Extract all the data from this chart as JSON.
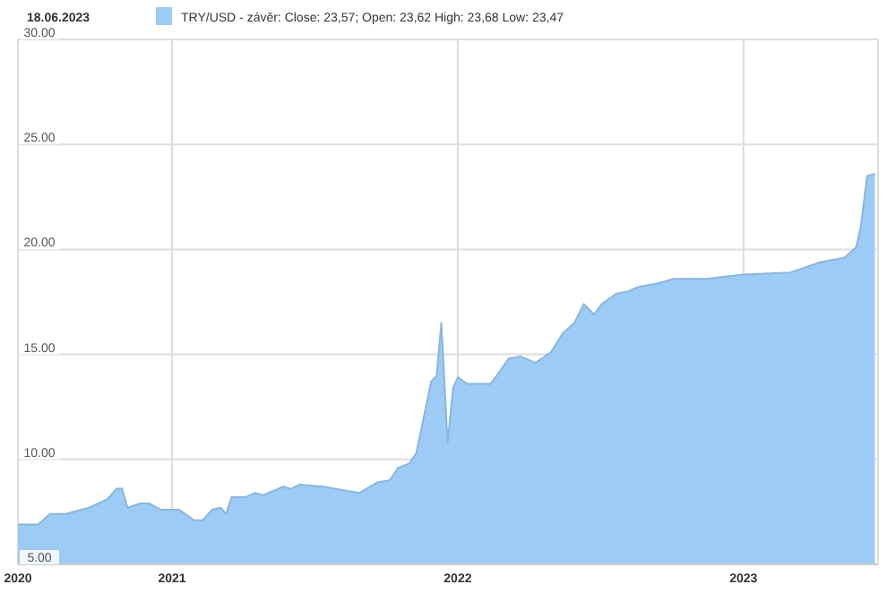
{
  "chart_data": {
    "type": "area",
    "title": "18.06.2023",
    "x": [
      "2020-06-18",
      "2020-07-14",
      "2020-07-29",
      "2020-08-18",
      "2020-09-17",
      "2020-10-10",
      "2020-10-22",
      "2020-10-29",
      "2020-11-05",
      "2020-11-21",
      "2020-12-03",
      "2020-12-18",
      "2021-01-10",
      "2021-01-29",
      "2021-02-09",
      "2021-02-21",
      "2021-03-04",
      "2021-03-11",
      "2021-03-18",
      "2021-04-05",
      "2021-04-17",
      "2021-04-28",
      "2021-05-23",
      "2021-06-02",
      "2021-06-13",
      "2021-07-13",
      "2021-07-29",
      "2021-08-28",
      "2021-09-20",
      "2021-10-06",
      "2021-10-17",
      "2021-10-31",
      "2021-11-09",
      "2021-11-28",
      "2021-12-05",
      "2021-12-11",
      "2021-12-19",
      "2021-12-26",
      "2022-01-01",
      "2022-01-13",
      "2022-02-12",
      "2022-02-20",
      "2022-03-07",
      "2022-03-22",
      "2022-04-10",
      "2022-04-30",
      "2022-05-15",
      "2022-05-30",
      "2022-06-11",
      "2022-06-24",
      "2022-07-04",
      "2022-07-23",
      "2022-08-07",
      "2022-08-19",
      "2022-09-15",
      "2022-10-04",
      "2022-11-15",
      "2022-12-31",
      "2023-03-02",
      "2023-04-10",
      "2023-05-10",
      "2023-05-25",
      "2023-05-31",
      "2023-06-08",
      "2023-06-18"
    ],
    "series": [
      {
        "name": "TRY/USD - závěr: Close: 23,57; Open: 23,62 High: 23,68 Low: 23,47",
        "color": "#9ccbf5",
        "values": [
          6.9,
          6.9,
          7.4,
          7.4,
          7.7,
          8.1,
          8.6,
          8.6,
          7.7,
          7.9,
          7.9,
          7.6,
          7.6,
          7.1,
          7.1,
          7.6,
          7.7,
          7.4,
          8.2,
          8.2,
          8.4,
          8.3,
          8.7,
          8.6,
          8.8,
          8.7,
          8.6,
          8.4,
          8.9,
          9.0,
          9.6,
          9.8,
          10.3,
          13.7,
          14.0,
          16.5,
          10.8,
          13.4,
          13.9,
          13.6,
          13.6,
          14.0,
          14.8,
          14.9,
          14.6,
          15.1,
          16.0,
          16.5,
          17.4,
          16.9,
          17.4,
          17.9,
          18.0,
          18.2,
          18.4,
          18.6,
          18.6,
          18.8,
          18.9,
          19.4,
          19.6,
          20.1,
          21.1,
          23.5,
          23.6
        ]
      }
    ],
    "xlim": [
      "2020-06-18",
      "2023-06-22"
    ],
    "xticks": [
      {
        "value": "2020-06-18",
        "label": "2020"
      },
      {
        "value": "2021-01-01",
        "label": "2021"
      },
      {
        "value": "2022-01-01",
        "label": "2022"
      },
      {
        "value": "2023-01-01",
        "label": "2023"
      }
    ],
    "ylim": [
      5,
      30
    ],
    "yticks": [
      {
        "value": 5,
        "label": "5.00"
      },
      {
        "value": 10,
        "label": "10.00"
      },
      {
        "value": 15,
        "label": "15.00"
      },
      {
        "value": 20,
        "label": "20.00"
      },
      {
        "value": 25,
        "label": "25.00"
      },
      {
        "value": 30,
        "label": "30.00"
      }
    ],
    "grid": true,
    "legend": "top left"
  }
}
